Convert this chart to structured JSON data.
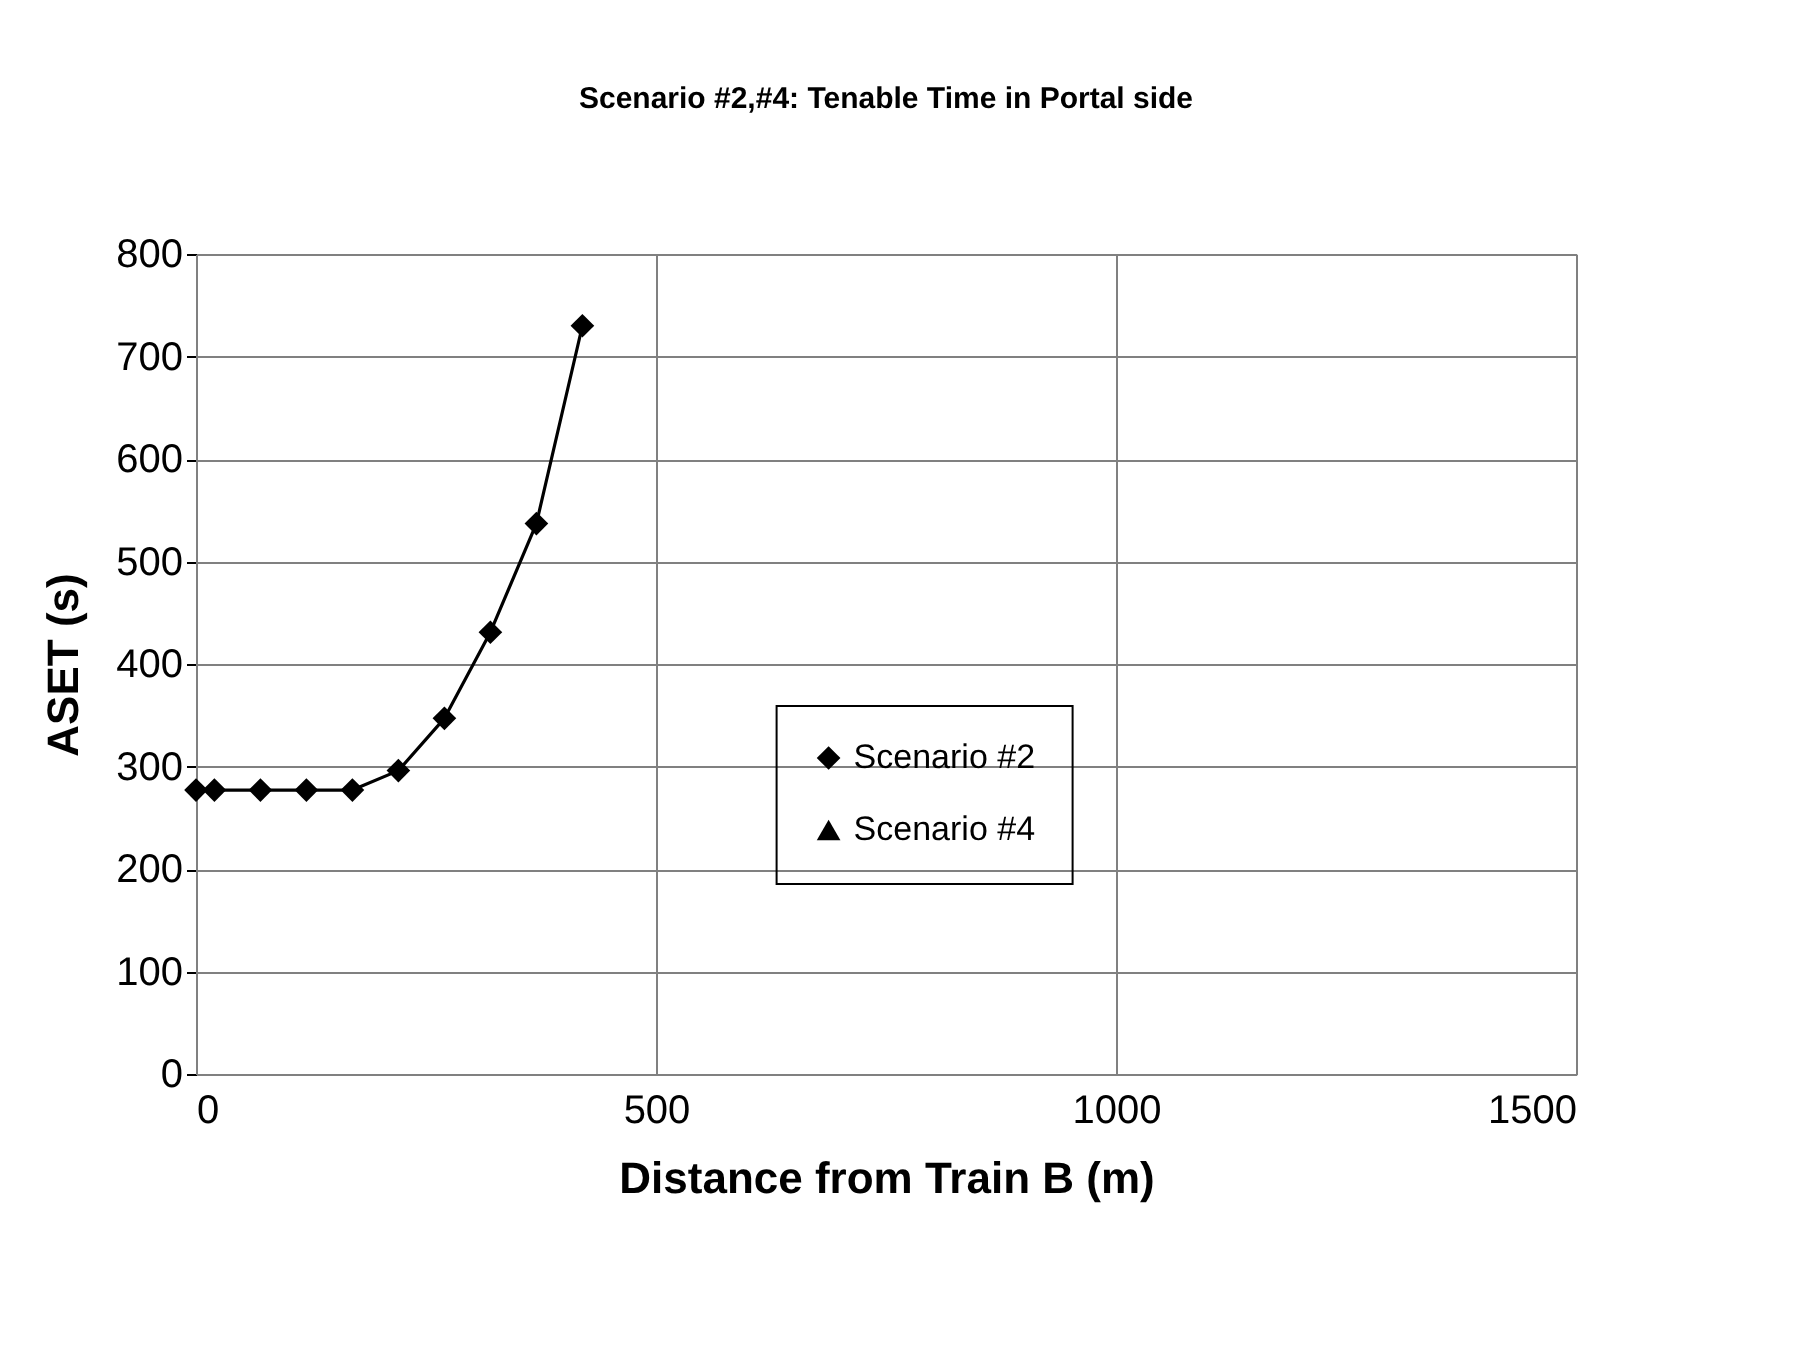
{
  "chart_data": {
    "type": "line",
    "title": "Scenario #2,#4: Tenable Time in Portal side",
    "xlabel": "Distance from Train B (m)",
    "ylabel": "ASET (s)",
    "x": [
      0,
      20,
      70,
      120,
      170,
      220,
      270,
      320,
      370,
      420
    ],
    "series": [
      {
        "name": "Scenario #2",
        "color": "#000000",
        "marker": "diamond",
        "values": [
          277,
          277,
          277,
          277,
          277,
          296,
          347,
          431,
          537,
          730
        ]
      },
      {
        "name": "Scenario #4",
        "color": "#000000",
        "marker": "triangle",
        "values": [
          null,
          null,
          null,
          null,
          null,
          null,
          null,
          null,
          null,
          null
        ]
      }
    ],
    "xlim": [
      0,
      1500
    ],
    "xticks": [
      0,
      500,
      1000,
      1500
    ],
    "ylim": [
      0,
      800
    ],
    "yticks": [
      0,
      100,
      200,
      300,
      400,
      500,
      600,
      700,
      800
    ],
    "grid": true,
    "legend": "right",
    "line_style": "solid"
  }
}
